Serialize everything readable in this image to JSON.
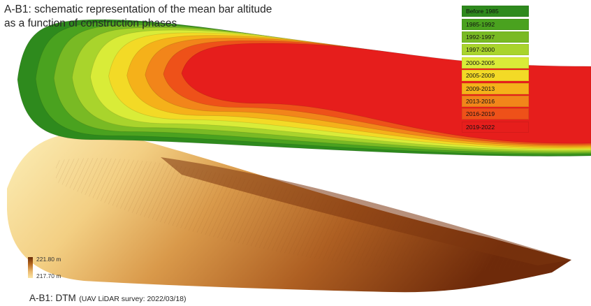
{
  "top_caption": "A-B1: schematic representation of the mean bar altitude as a function of construction phases",
  "legend": [
    {
      "label": "Before 1985",
      "color": "#2e8a1d"
    },
    {
      "label": "1985-1992",
      "color": "#4aa21f"
    },
    {
      "label": "1992-1997",
      "color": "#79ba24"
    },
    {
      "label": "1997-2000",
      "color": "#a9d42c"
    },
    {
      "label": "2000-2005",
      "color": "#d9ec38"
    },
    {
      "label": "2005-2009",
      "color": "#f3da26"
    },
    {
      "label": "2009-2013",
      "color": "#f5b11a"
    },
    {
      "label": "2013-2016",
      "color": "#f2851a"
    },
    {
      "label": "2016-2019",
      "color": "#ee5119"
    },
    {
      "label": "2019-2022",
      "color": "#e61e1c"
    }
  ],
  "scale": {
    "max_label": "221.80 m",
    "min_label": "217.70 m"
  },
  "bottom_caption": {
    "main": "A-B1: DTM",
    "sub": "(UAV LiDAR survey: 2022/03/18)"
  }
}
